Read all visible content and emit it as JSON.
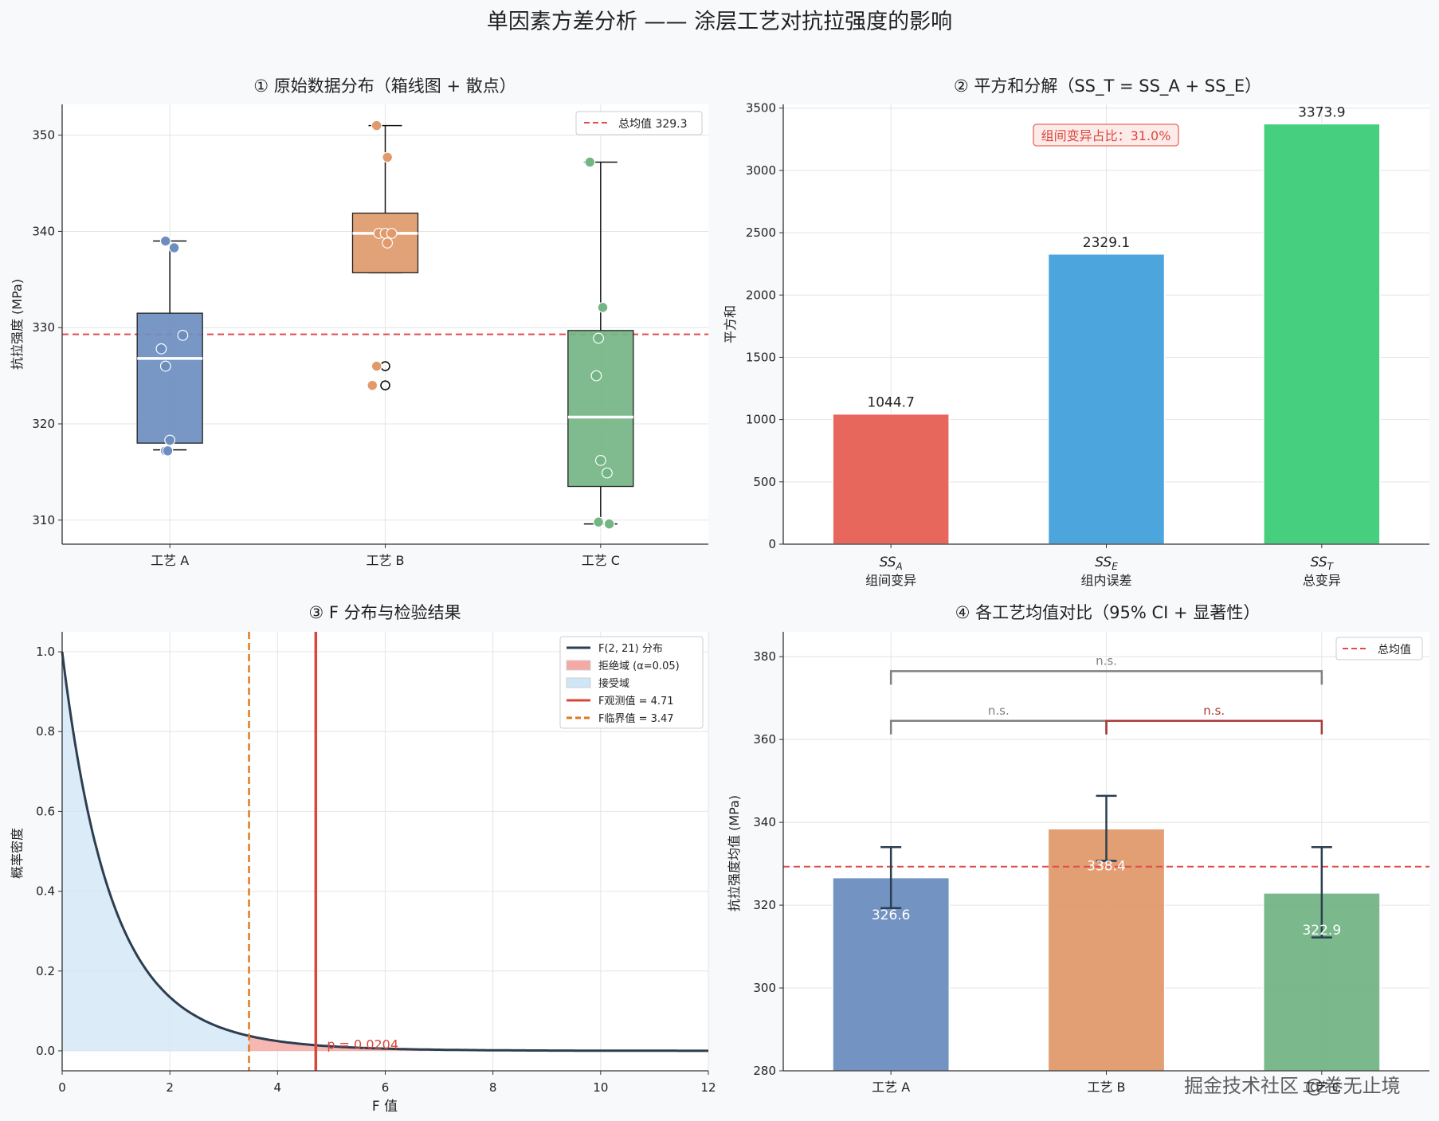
{
  "title": "单因素方差分析 —— 涂层工艺对抗拉强度的影响",
  "watermark": "掘金技术社区 @卷无止境",
  "colors": {
    "A": "#6c8ebf",
    "B": "#e09a6c",
    "C": "#74b586",
    "ssa": "#e8675c",
    "sse": "#4da5de",
    "sst": "#46cf7e",
    "mean_line": "#e14b4b",
    "fcurve": "#2c3e50",
    "critical": "#e07a1f",
    "observed": "#d9473a",
    "reject": "#f4a9a5",
    "accept": "#cfe6f6"
  },
  "chart_data": [
    {
      "id": "box",
      "type": "box",
      "title": "① 原始数据分布（箱线图 + 散点）",
      "ylabel": "抗拉强度 (MPa)",
      "ylim": [
        307.5,
        353.2
      ],
      "yticks": [
        310,
        320,
        330,
        340,
        350
      ],
      "grid": true,
      "legend": {
        "position": "top-right",
        "entries": [
          "总均值 329.3"
        ]
      },
      "grand_mean": 329.3,
      "categories": [
        "工艺 A",
        "工艺 B",
        "工艺 C"
      ],
      "boxes": [
        {
          "q1": 318.0,
          "median": 326.8,
          "q3": 331.5,
          "whisker_low": 317.3,
          "whisker_high": 339.0,
          "fliers": []
        },
        {
          "q1": 335.7,
          "median": 339.8,
          "q3": 341.9,
          "whisker_low": 335.7,
          "whisker_high": 351.0,
          "fliers": [
            326.0,
            324.0
          ]
        },
        {
          "q1": 313.5,
          "median": 320.7,
          "q3": 329.7,
          "whisker_low": 309.6,
          "whisker_high": 347.2,
          "fliers": []
        }
      ],
      "points": [
        [
          [
            -0.02,
            339.0
          ],
          [
            0.02,
            338.3
          ],
          [
            -0.04,
            327.8
          ],
          [
            -0.02,
            326.0
          ],
          [
            0.06,
            329.2
          ],
          [
            0.0,
            318.3
          ],
          [
            -0.02,
            317.2
          ],
          [
            -0.01,
            317.2
          ]
        ],
        [
          [
            -0.04,
            351.0
          ],
          [
            0.01,
            347.7
          ],
          [
            -0.03,
            339.8
          ],
          [
            0.0,
            339.8
          ],
          [
            0.03,
            339.8
          ],
          [
            0.01,
            338.8
          ],
          [
            -0.04,
            326.0
          ],
          [
            -0.06,
            324.0
          ]
        ],
        [
          [
            -0.05,
            347.2
          ],
          [
            0.01,
            332.1
          ],
          [
            -0.01,
            328.9
          ],
          [
            -0.02,
            325.0
          ],
          [
            0.0,
            316.2
          ],
          [
            0.03,
            314.9
          ],
          [
            -0.01,
            309.8
          ],
          [
            0.04,
            309.6
          ]
        ]
      ]
    },
    {
      "id": "ss",
      "type": "bar",
      "title": "② 平方和分解（SS_T = SS_A + SS_E）",
      "ylabel": "平方和",
      "ylim": [
        0,
        3530
      ],
      "yticks": [
        0,
        500,
        1000,
        1500,
        2000,
        2500,
        3000,
        3500
      ],
      "grid": true,
      "categories": [
        {
          "main": "SS",
          "sub": "A",
          "label": "组间变异"
        },
        {
          "main": "SS",
          "sub": "E",
          "label": "组内误差"
        },
        {
          "main": "SS",
          "sub": "T",
          "label": "总变异"
        }
      ],
      "values": [
        1044.7,
        2329.1,
        3373.9
      ],
      "value_labels": [
        "1044.7",
        "2329.1",
        "3373.9"
      ],
      "annotation": "组间变异占比：31.0%"
    },
    {
      "id": "fdist",
      "type": "line",
      "title": "③ F 分布与检验结果",
      "xlabel": "F 值",
      "ylabel": "概率密度",
      "xlim": [
        0,
        12
      ],
      "ylim": [
        -0.05,
        1.05
      ],
      "xticks": [
        0,
        2,
        4,
        6,
        8,
        10,
        12
      ],
      "yticks": [
        0.0,
        0.2,
        0.4,
        0.6,
        0.8,
        1.0
      ],
      "grid": true,
      "df": [
        2,
        21
      ],
      "f_critical": 3.47,
      "f_observed": 4.71,
      "p_label": "p = 0.0204",
      "legend": {
        "position": "top-right",
        "entries": [
          {
            "label": "F(2, 21) 分布",
            "kind": "line",
            "key": "fcurve"
          },
          {
            "label": "拒绝域 (α=0.05)",
            "kind": "patch",
            "key": "reject"
          },
          {
            "label": "接受域",
            "kind": "patch",
            "key": "accept"
          },
          {
            "label": "F观测值 = 4.71",
            "kind": "line",
            "key": "observed"
          },
          {
            "label": "F临界值 = 3.47",
            "kind": "dash",
            "key": "critical"
          }
        ]
      }
    },
    {
      "id": "means",
      "type": "bar",
      "title": "④ 各工艺均值对比（95% CI + 显著性）",
      "ylabel": "抗拉强度均值 (MPa)",
      "ylim": [
        280,
        386
      ],
      "yticks": [
        280,
        300,
        320,
        340,
        360,
        380
      ],
      "grid": true,
      "legend": {
        "position": "top-right",
        "entries": [
          "总均值"
        ]
      },
      "grand_mean": 329.3,
      "categories": [
        "工艺 A",
        "工艺 B",
        "工艺 C"
      ],
      "values": [
        326.6,
        338.4,
        322.9
      ],
      "value_labels": [
        "326.6",
        "338.4",
        "322.9"
      ],
      "ci": [
        [
          319.3,
          334.0
        ],
        [
          330.7,
          346.4
        ],
        [
          312.2,
          334.0
        ]
      ],
      "brackets": [
        {
          "from": 0,
          "to": 1,
          "y": 364.5,
          "label": "n.s.",
          "color": "#808080"
        },
        {
          "from": 1,
          "to": 2,
          "y": 364.5,
          "label": "n.s.",
          "color": "#a83b35"
        },
        {
          "from": 0,
          "to": 2,
          "y": 376.5,
          "label": "n.s.",
          "color": "#808080"
        }
      ]
    }
  ]
}
